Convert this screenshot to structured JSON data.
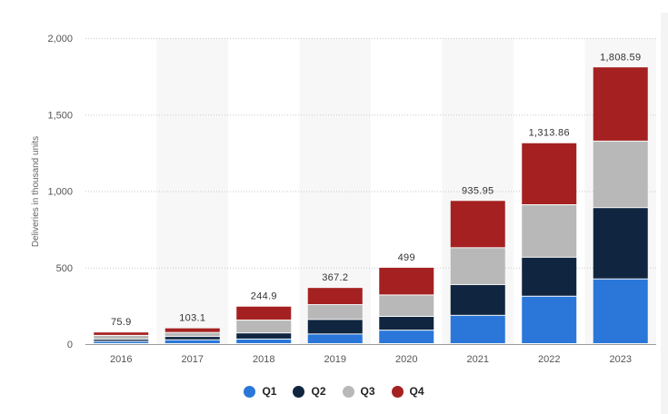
{
  "chart_data": {
    "type": "bar",
    "stacked": true,
    "ylabel": "Deliveries in thousand units",
    "xlabel": "",
    "ylim": [
      0,
      2000
    ],
    "yticks": [
      0,
      500,
      1000,
      1500,
      2000
    ],
    "ytick_labels": [
      "0",
      "500",
      "1,000",
      "1,500",
      "2,000"
    ],
    "grid": "horizontal dotted",
    "legend_position": "bottom-center",
    "categories": [
      "2016",
      "2017",
      "2018",
      "2019",
      "2020",
      "2021",
      "2022",
      "2023"
    ],
    "totals": [
      75.9,
      103.1,
      244.9,
      367.2,
      499,
      935.95,
      1313.86,
      1808.59
    ],
    "total_labels": [
      "75.9",
      "103.1",
      "244.9",
      "367.2",
      "499",
      "935.95",
      "1,313.86",
      "1,808.59"
    ],
    "series": [
      {
        "name": "Q1",
        "color": "#2a77d9",
        "values": [
          15,
          25,
          30,
          63,
          88,
          185,
          310,
          423
        ]
      },
      {
        "name": "Q2",
        "color": "#10253f",
        "values": [
          14,
          22,
          40,
          95,
          90,
          201,
          255,
          466
        ]
      },
      {
        "name": "Q3",
        "color": "#b8b8b8",
        "values": [
          25,
          26,
          84,
          97,
          140,
          241,
          343,
          435
        ]
      },
      {
        "name": "Q4",
        "color": "#a52121",
        "values": [
          22,
          30,
          91,
          112,
          181,
          309,
          405,
          485
        ]
      }
    ]
  }
}
